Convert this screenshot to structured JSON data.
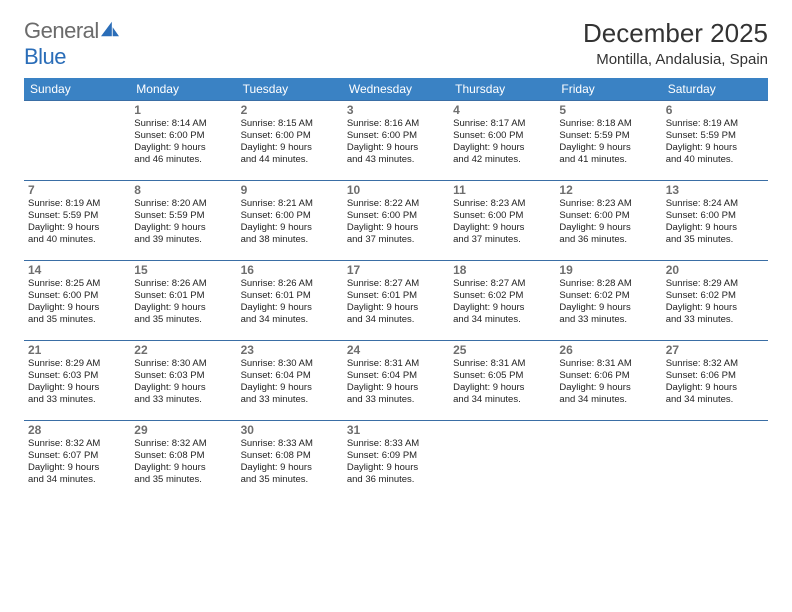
{
  "brand": {
    "part1": "General",
    "part2": "Blue"
  },
  "title": "December 2025",
  "location": "Montilla, Andalusia, Spain",
  "header_bg": "#3a82c4",
  "header_fg": "#ffffff",
  "border_color": "#3a6ea5",
  "daynum_color": "#6e6e6e",
  "text_color": "#222222",
  "days": [
    "Sunday",
    "Monday",
    "Tuesday",
    "Wednesday",
    "Thursday",
    "Friday",
    "Saturday"
  ],
  "weeks": [
    [
      null,
      {
        "n": "1",
        "sr": "Sunrise: 8:14 AM",
        "ss": "Sunset: 6:00 PM",
        "d1": "Daylight: 9 hours",
        "d2": "and 46 minutes."
      },
      {
        "n": "2",
        "sr": "Sunrise: 8:15 AM",
        "ss": "Sunset: 6:00 PM",
        "d1": "Daylight: 9 hours",
        "d2": "and 44 minutes."
      },
      {
        "n": "3",
        "sr": "Sunrise: 8:16 AM",
        "ss": "Sunset: 6:00 PM",
        "d1": "Daylight: 9 hours",
        "d2": "and 43 minutes."
      },
      {
        "n": "4",
        "sr": "Sunrise: 8:17 AM",
        "ss": "Sunset: 6:00 PM",
        "d1": "Daylight: 9 hours",
        "d2": "and 42 minutes."
      },
      {
        "n": "5",
        "sr": "Sunrise: 8:18 AM",
        "ss": "Sunset: 5:59 PM",
        "d1": "Daylight: 9 hours",
        "d2": "and 41 minutes."
      },
      {
        "n": "6",
        "sr": "Sunrise: 8:19 AM",
        "ss": "Sunset: 5:59 PM",
        "d1": "Daylight: 9 hours",
        "d2": "and 40 minutes."
      }
    ],
    [
      {
        "n": "7",
        "sr": "Sunrise: 8:19 AM",
        "ss": "Sunset: 5:59 PM",
        "d1": "Daylight: 9 hours",
        "d2": "and 40 minutes."
      },
      {
        "n": "8",
        "sr": "Sunrise: 8:20 AM",
        "ss": "Sunset: 5:59 PM",
        "d1": "Daylight: 9 hours",
        "d2": "and 39 minutes."
      },
      {
        "n": "9",
        "sr": "Sunrise: 8:21 AM",
        "ss": "Sunset: 6:00 PM",
        "d1": "Daylight: 9 hours",
        "d2": "and 38 minutes."
      },
      {
        "n": "10",
        "sr": "Sunrise: 8:22 AM",
        "ss": "Sunset: 6:00 PM",
        "d1": "Daylight: 9 hours",
        "d2": "and 37 minutes."
      },
      {
        "n": "11",
        "sr": "Sunrise: 8:23 AM",
        "ss": "Sunset: 6:00 PM",
        "d1": "Daylight: 9 hours",
        "d2": "and 37 minutes."
      },
      {
        "n": "12",
        "sr": "Sunrise: 8:23 AM",
        "ss": "Sunset: 6:00 PM",
        "d1": "Daylight: 9 hours",
        "d2": "and 36 minutes."
      },
      {
        "n": "13",
        "sr": "Sunrise: 8:24 AM",
        "ss": "Sunset: 6:00 PM",
        "d1": "Daylight: 9 hours",
        "d2": "and 35 minutes."
      }
    ],
    [
      {
        "n": "14",
        "sr": "Sunrise: 8:25 AM",
        "ss": "Sunset: 6:00 PM",
        "d1": "Daylight: 9 hours",
        "d2": "and 35 minutes."
      },
      {
        "n": "15",
        "sr": "Sunrise: 8:26 AM",
        "ss": "Sunset: 6:01 PM",
        "d1": "Daylight: 9 hours",
        "d2": "and 35 minutes."
      },
      {
        "n": "16",
        "sr": "Sunrise: 8:26 AM",
        "ss": "Sunset: 6:01 PM",
        "d1": "Daylight: 9 hours",
        "d2": "and 34 minutes."
      },
      {
        "n": "17",
        "sr": "Sunrise: 8:27 AM",
        "ss": "Sunset: 6:01 PM",
        "d1": "Daylight: 9 hours",
        "d2": "and 34 minutes."
      },
      {
        "n": "18",
        "sr": "Sunrise: 8:27 AM",
        "ss": "Sunset: 6:02 PM",
        "d1": "Daylight: 9 hours",
        "d2": "and 34 minutes."
      },
      {
        "n": "19",
        "sr": "Sunrise: 8:28 AM",
        "ss": "Sunset: 6:02 PM",
        "d1": "Daylight: 9 hours",
        "d2": "and 33 minutes."
      },
      {
        "n": "20",
        "sr": "Sunrise: 8:29 AM",
        "ss": "Sunset: 6:02 PM",
        "d1": "Daylight: 9 hours",
        "d2": "and 33 minutes."
      }
    ],
    [
      {
        "n": "21",
        "sr": "Sunrise: 8:29 AM",
        "ss": "Sunset: 6:03 PM",
        "d1": "Daylight: 9 hours",
        "d2": "and 33 minutes."
      },
      {
        "n": "22",
        "sr": "Sunrise: 8:30 AM",
        "ss": "Sunset: 6:03 PM",
        "d1": "Daylight: 9 hours",
        "d2": "and 33 minutes."
      },
      {
        "n": "23",
        "sr": "Sunrise: 8:30 AM",
        "ss": "Sunset: 6:04 PM",
        "d1": "Daylight: 9 hours",
        "d2": "and 33 minutes."
      },
      {
        "n": "24",
        "sr": "Sunrise: 8:31 AM",
        "ss": "Sunset: 6:04 PM",
        "d1": "Daylight: 9 hours",
        "d2": "and 33 minutes."
      },
      {
        "n": "25",
        "sr": "Sunrise: 8:31 AM",
        "ss": "Sunset: 6:05 PM",
        "d1": "Daylight: 9 hours",
        "d2": "and 34 minutes."
      },
      {
        "n": "26",
        "sr": "Sunrise: 8:31 AM",
        "ss": "Sunset: 6:06 PM",
        "d1": "Daylight: 9 hours",
        "d2": "and 34 minutes."
      },
      {
        "n": "27",
        "sr": "Sunrise: 8:32 AM",
        "ss": "Sunset: 6:06 PM",
        "d1": "Daylight: 9 hours",
        "d2": "and 34 minutes."
      }
    ],
    [
      {
        "n": "28",
        "sr": "Sunrise: 8:32 AM",
        "ss": "Sunset: 6:07 PM",
        "d1": "Daylight: 9 hours",
        "d2": "and 34 minutes."
      },
      {
        "n": "29",
        "sr": "Sunrise: 8:32 AM",
        "ss": "Sunset: 6:08 PM",
        "d1": "Daylight: 9 hours",
        "d2": "and 35 minutes."
      },
      {
        "n": "30",
        "sr": "Sunrise: 8:33 AM",
        "ss": "Sunset: 6:08 PM",
        "d1": "Daylight: 9 hours",
        "d2": "and 35 minutes."
      },
      {
        "n": "31",
        "sr": "Sunrise: 8:33 AM",
        "ss": "Sunset: 6:09 PM",
        "d1": "Daylight: 9 hours",
        "d2": "and 36 minutes."
      },
      null,
      null,
      null
    ]
  ]
}
